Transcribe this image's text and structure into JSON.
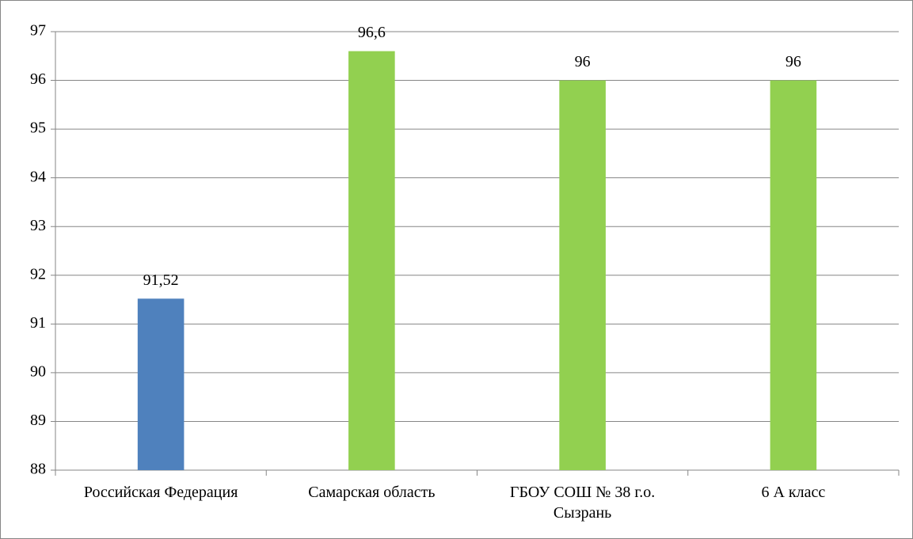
{
  "chart_data": {
    "type": "bar",
    "categories": [
      "Российская Федерация",
      "Самарская область",
      "ГБОУ СОШ № 38 г.о. Сызрань",
      "6 А класс"
    ],
    "values": [
      91.52,
      96.6,
      96,
      96
    ],
    "value_labels": [
      "91,52",
      "96,6",
      "96",
      "96"
    ],
    "colors": [
      "#4f81bd",
      "#92d050",
      "#92d050",
      "#92d050"
    ],
    "ylim": [
      88,
      97
    ],
    "yticks": [
      88,
      89,
      90,
      91,
      92,
      93,
      94,
      95,
      96,
      97
    ],
    "grid": true
  }
}
